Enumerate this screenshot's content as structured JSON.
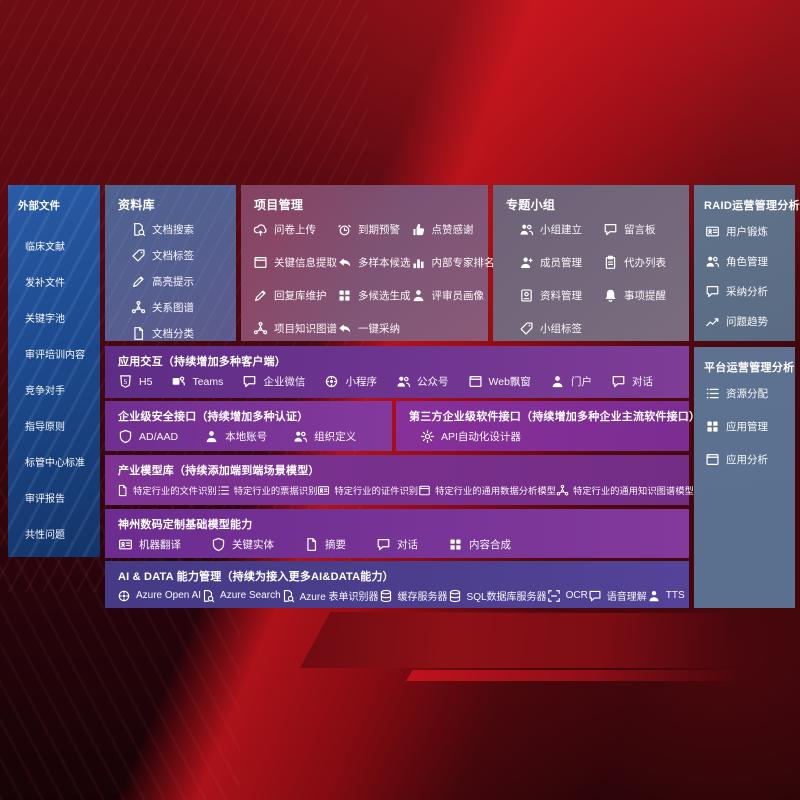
{
  "colors": {
    "background_red": "#5d0a11",
    "band_red": "#c6141c",
    "sidebar_blue": "#1d4a8e",
    "panel_slate": "#5d7190",
    "band_purple": "#7e3d97",
    "band_magenta": "#83399c",
    "band_indigo": "#4d3f8e"
  },
  "sidebar": {
    "title": "外部文件",
    "items": [
      "临床文献",
      "发补文件",
      "关键字池",
      "审评培训内容",
      "竞争对手",
      "指导原则",
      "标管中心标准",
      "审评报告",
      "共性问题"
    ]
  },
  "panels": {
    "library": {
      "title": "资料库",
      "items": [
        {
          "label": "文档搜索",
          "icon": "doc-search",
          "glyph": "docsearch"
        },
        {
          "label": "文档标签",
          "icon": "doc-tag",
          "glyph": "tag"
        },
        {
          "label": "高亮提示",
          "icon": "highlight-pen",
          "glyph": "pen"
        },
        {
          "label": "关系图谱",
          "icon": "relation-graph",
          "glyph": "net"
        },
        {
          "label": "文档分类",
          "icon": "doc-classify",
          "glyph": "doc"
        }
      ]
    },
    "project": {
      "title": "项目管理",
      "items": [
        {
          "label": "问卷上传",
          "icon": "survey-upload",
          "glyph": "cloud"
        },
        {
          "label": "到期预警",
          "icon": "due-alert",
          "glyph": "alarm"
        },
        {
          "label": "点赞感谢",
          "icon": "like-thanks",
          "glyph": "thumb"
        },
        {
          "label": "关键信息提取",
          "icon": "key-info-extract",
          "glyph": "win"
        },
        {
          "label": "多样本候选",
          "icon": "multi-sample",
          "glyph": "reply"
        },
        {
          "label": "内部专家排名",
          "icon": "expert-ranking",
          "glyph": "rank"
        },
        {
          "label": "回复库维护",
          "icon": "reply-maintain",
          "glyph": "pen"
        },
        {
          "label": "多候选生成",
          "icon": "multi-candidate",
          "glyph": "grid"
        },
        {
          "label": "评审员画像",
          "icon": "reviewer-portrait",
          "glyph": "person"
        },
        {
          "label": "项目知识图谱",
          "icon": "project-knowledge-graph",
          "glyph": "net"
        },
        {
          "label": "一键采纳",
          "icon": "one-click-adopt",
          "glyph": "reply"
        }
      ]
    },
    "group": {
      "title": "专题小组",
      "items": [
        {
          "label": "小组建立",
          "icon": "team-create",
          "glyph": "people"
        },
        {
          "label": "留言板",
          "icon": "message-board",
          "glyph": "chat"
        },
        {
          "label": "成员管理",
          "icon": "member-manage",
          "glyph": "personplus"
        },
        {
          "label": "代办列表",
          "icon": "todo-list",
          "glyph": "clip"
        },
        {
          "label": "资料管理",
          "icon": "material-manage",
          "glyph": "album"
        },
        {
          "label": "事项提醒",
          "icon": "reminder",
          "glyph": "bell"
        },
        {
          "label": "小组标签",
          "icon": "group-tag",
          "glyph": "tag"
        }
      ]
    },
    "raid": {
      "title": "RAID运营管理分析",
      "items": [
        {
          "label": "用户锻炼",
          "icon": "user-training",
          "glyph": "card"
        },
        {
          "label": "角色管理",
          "icon": "role-manage",
          "glyph": "people"
        },
        {
          "label": "采纳分析",
          "icon": "adoption-analysis",
          "glyph": "chat"
        },
        {
          "label": "问题趋势",
          "icon": "issue-trend",
          "glyph": "trend"
        }
      ]
    },
    "platform": {
      "title": "平台运营管理分析",
      "items": [
        {
          "label": "资源分配",
          "icon": "resource-allocation",
          "glyph": "list"
        },
        {
          "label": "应用管理",
          "icon": "app-manage",
          "glyph": "grid"
        },
        {
          "label": "应用分析",
          "icon": "app-analysis",
          "glyph": "win"
        }
      ]
    }
  },
  "rows": {
    "interaction": {
      "title": "应用交互（持续增加多种客户端）",
      "items": [
        {
          "label": "H5",
          "icon": "h5",
          "glyph": "h5"
        },
        {
          "label": "Teams",
          "icon": "teams",
          "glyph": "teams"
        },
        {
          "label": "企业微信",
          "icon": "wechat-work",
          "glyph": "chat"
        },
        {
          "label": "小程序",
          "icon": "mini-program",
          "glyph": "swirl"
        },
        {
          "label": "公众号",
          "icon": "official-account",
          "glyph": "people"
        },
        {
          "label": "Web飘窗",
          "icon": "web-popup",
          "glyph": "win"
        },
        {
          "label": "门户",
          "icon": "portal",
          "glyph": "person"
        },
        {
          "label": "对话",
          "icon": "dialog",
          "glyph": "chat"
        }
      ]
    },
    "security": {
      "title": "企业级安全接口（持续增加多种认证）",
      "items": [
        {
          "label": "AD/AAD",
          "icon": "ad-auth",
          "glyph": "shield"
        },
        {
          "label": "本地账号",
          "icon": "local-account",
          "glyph": "person"
        },
        {
          "label": "组织定义",
          "icon": "org-define",
          "glyph": "people"
        }
      ]
    },
    "thirdparty": {
      "title": "第三方企业级软件接口（持续增加多种企业主流软件接口）",
      "items": [
        {
          "label": "API自动化设计器",
          "icon": "api-designer",
          "glyph": "gear"
        }
      ]
    },
    "industry": {
      "title": "产业模型库（持续添加端到端场景模型）",
      "items": [
        {
          "label": "特定行业的文件识别",
          "icon": "file-recognition",
          "glyph": "doc"
        },
        {
          "label": "特定行业的票据识别",
          "icon": "invoice-recognition",
          "glyph": "list"
        },
        {
          "label": "特定行业的证件识别",
          "icon": "id-recognition",
          "glyph": "card"
        },
        {
          "label": "特定行业的通用数据分析模型",
          "icon": "data-analysis-model",
          "glyph": "win"
        },
        {
          "label": "特定行业的通用知识图谱模型",
          "icon": "knowledge-graph-model",
          "glyph": "net"
        }
      ]
    },
    "base": {
      "title": "神州数码定制基础模型能力",
      "items": [
        {
          "label": "机器翻译",
          "icon": "machine-translation",
          "glyph": "card"
        },
        {
          "label": "关键实体",
          "icon": "key-entity",
          "glyph": "shield"
        },
        {
          "label": "摘要",
          "icon": "summary",
          "glyph": "doc"
        },
        {
          "label": "对话",
          "icon": "dialog-model",
          "glyph": "chat"
        },
        {
          "label": "内容合成",
          "icon": "content-compose",
          "glyph": "grid"
        }
      ]
    },
    "aidata": {
      "title": "AI & DATA 能力管理（持续为接入更多AI&DATA能力）",
      "items": [
        {
          "label": "Azure Open AI",
          "icon": "azure-openai",
          "glyph": "swirl"
        },
        {
          "label": "Azure Search",
          "icon": "azure-search",
          "glyph": "docsearch"
        },
        {
          "label": "Azure 表单识别器",
          "icon": "form-recognizer",
          "glyph": "docsearch"
        },
        {
          "label": "缓存服务器",
          "icon": "cache-server",
          "glyph": "db"
        },
        {
          "label": "SQL数据库服务器",
          "icon": "sql-db-server",
          "glyph": "db"
        },
        {
          "label": "OCR",
          "icon": "ocr",
          "glyph": "ocr"
        },
        {
          "label": "语音理解",
          "icon": "speech-understanding",
          "glyph": "chat"
        },
        {
          "label": "TTS",
          "icon": "tts",
          "glyph": "person"
        }
      ]
    }
  }
}
